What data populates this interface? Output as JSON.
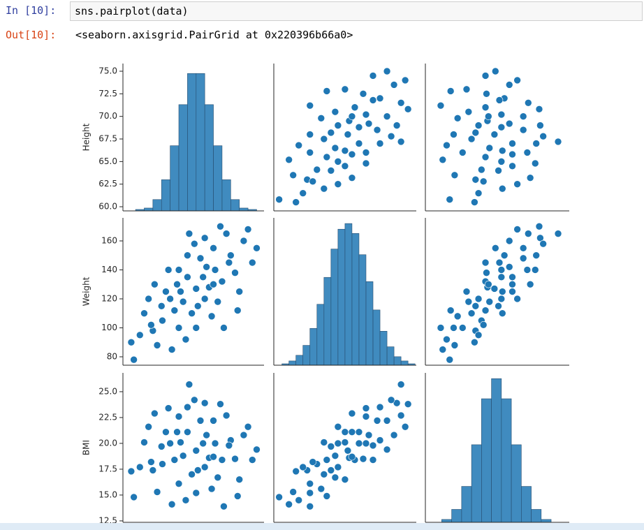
{
  "cell": {
    "in_prompt": "In [10]:",
    "code": "sns.pairplot(data)",
    "out_prompt": "Out[10]:",
    "output": "<seaborn.axisgrid.PairGrid at 0x220396b66a0>"
  },
  "chart_data": {
    "type": "pairplot",
    "color": "#1f77b4",
    "count_lim": [
      0,
      104
    ],
    "variables": [
      {
        "name": "Height",
        "lim": [
          59.54,
          75.85
        ],
        "ticks": [
          {
            "value": 60,
            "label": "60.0"
          },
          62.5,
          {
            "value": 65,
            "label": "65.0"
          },
          67.5,
          {
            "value": 70,
            "label": "70.0"
          },
          72.5,
          {
            "value": 75,
            "label": "75.0"
          }
        ],
        "bins": [
          60,
          61,
          62,
          63,
          64,
          65,
          66,
          67,
          68,
          69,
          70,
          71,
          72,
          73,
          74,
          75,
          76
        ],
        "counts": [
          0,
          1,
          2,
          8,
          22,
          46,
          75,
          97,
          97,
          75,
          46,
          22,
          8,
          2,
          1,
          0
        ]
      },
      {
        "name": "Weight",
        "lim": [
          74.2,
          175.9
        ],
        "ticks": [
          80,
          100,
          120,
          140,
          160
        ],
        "bins": [
          75,
          80,
          85,
          90,
          95,
          100,
          105,
          110,
          115,
          120,
          125,
          130,
          135,
          140,
          145,
          150,
          155,
          160,
          165,
          170,
          175
        ],
        "counts": [
          0,
          1,
          3,
          7,
          14,
          26,
          43,
          62,
          82,
          96,
          100,
          93,
          78,
          59,
          39,
          24,
          13,
          6,
          3,
          1
        ]
      },
      {
        "name": "BMI",
        "lim": [
          12.36,
          26.82
        ],
        "ticks": [
          12.5,
          {
            "value": 15,
            "label": "15.0"
          },
          17.5,
          {
            "value": 20,
            "label": "20.0"
          },
          22.5,
          {
            "value": 25,
            "label": "25.0"
          }
        ],
        "bins": [
          12,
          13,
          14,
          15,
          16,
          17,
          18,
          19,
          20,
          21,
          22,
          23,
          24,
          25,
          26,
          27
        ],
        "counts": [
          0,
          0,
          2,
          9,
          25,
          54,
          86,
          100,
          86,
          54,
          25,
          9,
          2,
          0,
          0
        ]
      }
    ],
    "rows": [
      [
        68.0,
        127,
        19.3
      ],
      [
        66.5,
        118,
        18.8
      ],
      [
        70.2,
        140,
        20.0
      ],
      [
        64.1,
        105,
        18.0
      ],
      [
        72.0,
        150,
        20.3
      ],
      [
        69.0,
        120,
        17.7
      ],
      [
        67.0,
        135,
        21.1
      ],
      [
        65.5,
        112,
        18.4
      ],
      [
        71.0,
        132,
        18.4
      ],
      [
        63.0,
        98,
        17.4
      ],
      [
        73.5,
        160,
        20.8
      ],
      [
        68.5,
        148,
        22.2
      ],
      [
        66.0,
        100,
        16.1
      ],
      [
        70.0,
        155,
        22.2
      ],
      [
        62.0,
        110,
        20.1
      ],
      [
        69.5,
        128,
        18.6
      ],
      [
        67.5,
        110,
        17.0
      ],
      [
        74.5,
        145,
        18.4
      ],
      [
        64.5,
        125,
        21.1
      ],
      [
        71.5,
        165,
        22.7
      ],
      [
        60.5,
        90,
        17.3
      ],
      [
        68.0,
        100,
        15.2
      ],
      [
        66.0,
        140,
        22.6
      ],
      [
        72.5,
        138,
        18.5
      ],
      [
        65.0,
        120,
        20.0
      ],
      [
        69.0,
        162,
        23.9
      ],
      [
        63.5,
        88,
        15.3
      ],
      [
        70.5,
        118,
        16.7
      ],
      [
        67.0,
        150,
        23.5
      ],
      [
        61.5,
        95,
        17.7
      ],
      [
        73.0,
        125,
        16.5
      ],
      [
        68.8,
        135,
        20.0
      ],
      [
        65.8,
        130,
        21.1
      ],
      [
        71.8,
        145,
        19.8
      ],
      [
        64.0,
        115,
        19.7
      ],
      [
        69.8,
        108,
        15.6
      ],
      [
        62.5,
        120,
        21.6
      ],
      [
        66.8,
        92,
        14.5
      ],
      [
        70.8,
        170,
        23.8
      ],
      [
        67.8,
        158,
        24.2
      ],
      [
        72.8,
        112,
        14.9
      ],
      [
        63.2,
        130,
        22.9
      ],
      [
        68.2,
        115,
        17.4
      ],
      [
        74.0,
        168,
        21.6
      ],
      [
        65.2,
        85,
        14.1
      ],
      [
        69.2,
        142,
        20.8
      ],
      [
        66.2,
        125,
        20.1
      ],
      [
        71.2,
        100,
        13.9
      ],
      [
        64.8,
        140,
        23.4
      ],
      [
        67.2,
        165,
        25.7
      ],
      [
        60.8,
        78,
        14.8
      ],
      [
        75.0,
        155,
        19.4
      ],
      [
        62.8,
        102,
        18.2
      ],
      [
        70.0,
        130,
        18.7
      ]
    ]
  }
}
